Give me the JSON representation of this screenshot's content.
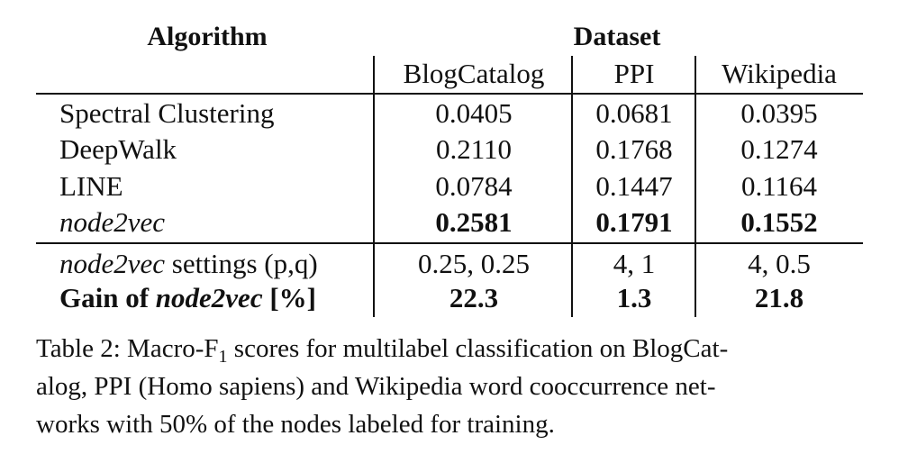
{
  "table": {
    "col_header_algorithm": "Algorithm",
    "col_header_dataset": "Dataset",
    "datasets": [
      "BlogCatalog",
      "PPI",
      "Wikipedia"
    ],
    "rows": [
      {
        "algorithm": "Spectral Clustering",
        "values": [
          "0.0405",
          "0.0681",
          "0.0395"
        ]
      },
      {
        "algorithm": "DeepWalk",
        "values": [
          "0.2110",
          "0.1768",
          "0.1274"
        ]
      },
      {
        "algorithm": "LINE",
        "values": [
          "0.0784",
          "0.1447",
          "0.1164"
        ]
      },
      {
        "algorithm": "node2vec",
        "values": [
          "0.2581",
          "0.1791",
          "0.1552"
        ]
      }
    ],
    "settings_row": {
      "label_italic": "node2vec",
      "label_rest": " settings (p,q)",
      "values": [
        "0.25, 0.25",
        "4, 1",
        "4, 0.5"
      ]
    },
    "gain_row": {
      "label_prefix": "Gain of ",
      "label_italic": "node2vec",
      "label_suffix": " [%]",
      "values": [
        "22.3",
        "1.3",
        "21.8"
      ]
    }
  },
  "caption": {
    "line1_prefix": "Table 2: Macro-F",
    "line1_sub": "1",
    "line1_suffix": " scores for multilabel classification on BlogCat-",
    "line2": "alog, PPI (Homo sapiens) and Wikipedia word cooccurrence net-",
    "line3": "works with 50% of the nodes labeled for training."
  }
}
